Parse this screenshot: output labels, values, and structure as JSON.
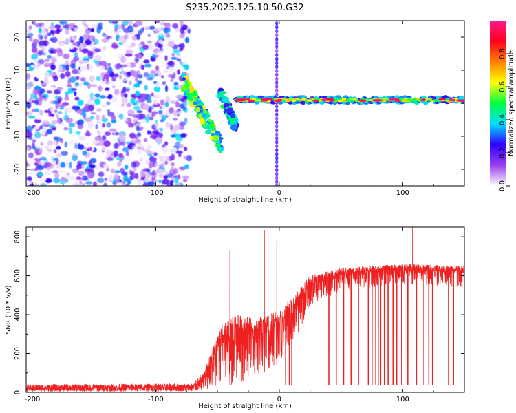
{
  "title": "S235.2025.125.10.50.G32",
  "chart_data": [
    {
      "type": "heatmap",
      "title": "S235.2025.125.10.50.G32",
      "xlabel": "Height of straight line (km)",
      "ylabel": "Frequency (Hz)",
      "xlim": [
        -205,
        150
      ],
      "ylim": [
        -25,
        25
      ],
      "xticks": [
        -200,
        -100,
        0,
        100
      ],
      "yticks": [
        -20,
        -10,
        0,
        10,
        20
      ],
      "colorbar": {
        "label": "Normalized spectral amplitude",
        "range": [
          0,
          1
        ],
        "ticks": [
          0.0,
          0.2,
          0.4,
          0.6,
          0.8
        ],
        "tick_labels": [
          "0.0",
          "0.2",
          "0.4",
          "0.6",
          "0.8"
        ],
        "colors": [
          "#ffffff",
          "#9a3ff0",
          "#3000ff",
          "#00e0ff",
          "#00ff40",
          "#ffff00",
          "#ff8000",
          "#ff0020",
          "#ff1a8c"
        ]
      },
      "regions": {
        "noise_field": {
          "x": [
            -205,
            -73
          ],
          "freq": [
            -25,
            25
          ],
          "amplitude": 0.3
        },
        "onset_branch": {
          "x": [
            -78,
            -47
          ],
          "freq_start": 7,
          "freq_end": -13,
          "amplitude": 0.45
        },
        "secondary_branch": {
          "x": [
            -48,
            -35
          ],
          "freq_start": 3,
          "freq_end": -7,
          "amplitude": 0.35
        },
        "vertical_artifact": {
          "x": -2,
          "freq": [
            -25,
            25
          ],
          "amplitude": 0.2
        },
        "dominant_ridge": {
          "x": [
            -35,
            150
          ],
          "freq": 1,
          "amplitude": 0.9
        }
      }
    },
    {
      "type": "line",
      "xlabel": "Height of straight line (km)",
      "ylabel": "SNR (10 * v/v)",
      "xlim": [
        -205,
        150
      ],
      "ylim": [
        0,
        850
      ],
      "xticks": [
        -200,
        -100,
        0,
        100
      ],
      "yticks": [
        0,
        200,
        400,
        600,
        800
      ],
      "series": [
        {
          "name": "SNR",
          "color": "#ee2020",
          "profile": [
            {
              "x": -205,
              "low": 5,
              "high": 40
            },
            {
              "x": -70,
              "low": 5,
              "high": 45
            },
            {
              "x": -60,
              "low": 10,
              "high": 120
            },
            {
              "x": -47,
              "low": 30,
              "high": 350
            },
            {
              "x": -35,
              "low": 40,
              "high": 400
            },
            {
              "x": -20,
              "low": 80,
              "high": 380
            },
            {
              "x": 0,
              "low": 150,
              "high": 420
            },
            {
              "x": 12,
              "low": 250,
              "high": 500
            },
            {
              "x": 25,
              "low": 450,
              "high": 600
            },
            {
              "x": 50,
              "low": 520,
              "high": 640
            },
            {
              "x": 100,
              "low": 560,
              "high": 660
            },
            {
              "x": 150,
              "low": 540,
              "high": 650
            }
          ],
          "spikes": [
            {
              "x": -40,
              "y": 730
            },
            {
              "x": -12,
              "y": 835
            },
            {
              "x": -2,
              "y": 780
            },
            {
              "x": 108,
              "y": 850
            }
          ],
          "dropouts_x": [
            5,
            8,
            10,
            40,
            46,
            52,
            58,
            64,
            72,
            75,
            78,
            80,
            82,
            85,
            88,
            92,
            95,
            99,
            104,
            111,
            117,
            121,
            124,
            137,
            141
          ],
          "dropout_level": 40
        }
      ]
    }
  ]
}
